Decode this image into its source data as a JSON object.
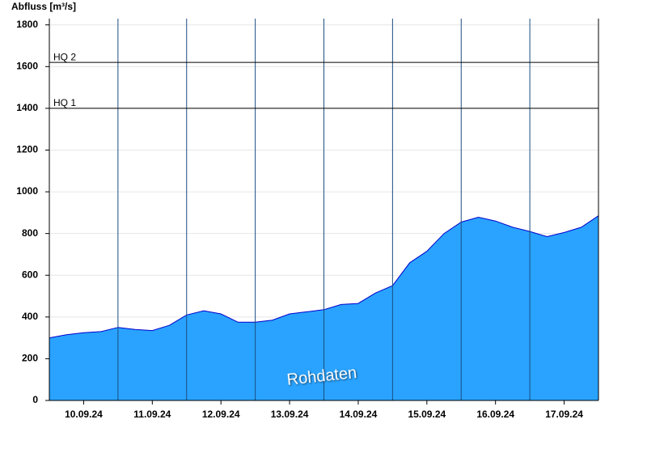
{
  "chart_data": {
    "type": "area",
    "y_label": "Abfluss [m³/s]",
    "watermark": "Rohdaten",
    "color": "#29a3ff",
    "line_color": "#0000cc",
    "xlim": [
      0,
      8
    ],
    "xticks": [
      {
        "value": 0.5,
        "label": "10.09.24"
      },
      {
        "value": 1.5,
        "label": "11.09.24"
      },
      {
        "value": 2.5,
        "label": "12.09.24"
      },
      {
        "value": 3.5,
        "label": "13.09.24"
      },
      {
        "value": 4.5,
        "label": "14.09.24"
      },
      {
        "value": 5.5,
        "label": "15.09.24"
      },
      {
        "value": 6.5,
        "label": "16.09.24"
      },
      {
        "value": 7.5,
        "label": "17.09.24"
      }
    ],
    "xgrid": [
      1,
      2,
      3,
      4,
      5,
      6,
      7
    ],
    "ylim": [
      0,
      1830
    ],
    "yticks": [
      0,
      200,
      400,
      600,
      800,
      1000,
      1200,
      1400,
      1600,
      1800
    ],
    "grid": true,
    "thresholds": [
      {
        "label": "HQ 1",
        "value": 1400
      },
      {
        "label": "HQ 2",
        "value": 1620
      }
    ],
    "x": [
      0,
      0.25,
      0.5,
      0.75,
      1,
      1.25,
      1.5,
      1.75,
      2,
      2.25,
      2.5,
      2.75,
      3,
      3.25,
      3.5,
      3.75,
      4,
      4.25,
      4.5,
      4.75,
      5,
      5.25,
      5.5,
      5.75,
      6,
      6.25,
      6.5,
      6.75,
      7,
      7.25,
      7.5,
      7.75,
      8
    ],
    "values": [
      300,
      315,
      325,
      330,
      350,
      340,
      335,
      360,
      410,
      430,
      415,
      375,
      375,
      385,
      415,
      425,
      435,
      460,
      465,
      515,
      550,
      660,
      715,
      800,
      855,
      878,
      860,
      830,
      810,
      785,
      805,
      830,
      885
    ]
  }
}
